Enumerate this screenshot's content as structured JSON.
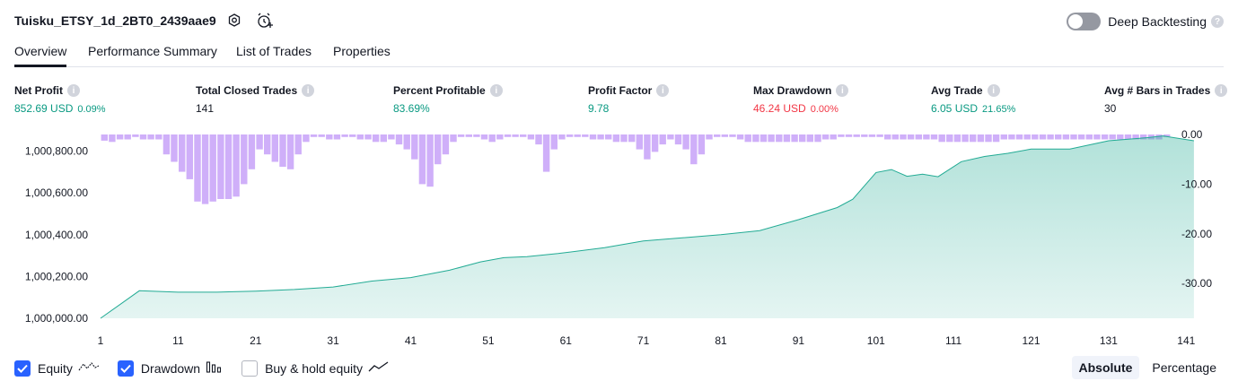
{
  "header": {
    "title": "Tuisku_ETSY_1d_2BT0_2439aae9",
    "deep_backtesting_label": "Deep Backtesting",
    "deep_backtesting_enabled": false
  },
  "tabs": [
    {
      "label": "Overview",
      "active": true
    },
    {
      "label": "Performance Summary",
      "active": false
    },
    {
      "label": "List of Trades",
      "active": false
    },
    {
      "label": "Properties",
      "active": false
    }
  ],
  "metrics": {
    "net_profit": {
      "label": "Net Profit",
      "value": "852.69 USD",
      "sub": "0.09%"
    },
    "total_closed_trades": {
      "label": "Total Closed Trades",
      "value": "141"
    },
    "percent_profitable": {
      "label": "Percent Profitable",
      "value": "83.69%"
    },
    "profit_factor": {
      "label": "Profit Factor",
      "value": "9.78"
    },
    "max_drawdown": {
      "label": "Max Drawdown",
      "value": "46.24 USD",
      "sub": "0.00%"
    },
    "avg_trade": {
      "label": "Avg Trade",
      "value": "6.05 USD",
      "sub": "21.65%"
    },
    "avg_bars": {
      "label": "Avg # Bars in Trades",
      "value": "30"
    }
  },
  "chart_data": {
    "type": "area",
    "x_ticks": [
      "1",
      "11",
      "21",
      "31",
      "41",
      "51",
      "61",
      "71",
      "81",
      "91",
      "101",
      "111",
      "121",
      "131",
      "141"
    ],
    "y_left_ticks": [
      "1,000,000.00",
      "1,000,200.00",
      "1,000,400.00",
      "1,000,600.00",
      "1,000,800.00"
    ],
    "y_left_range": [
      1000000,
      1000880
    ],
    "y_right_ticks": [
      "0.00",
      "-10.00",
      "-20.00",
      "-30.00"
    ],
    "y_right_range": [
      -37,
      0
    ],
    "equity_points": [
      [
        1,
        1000000
      ],
      [
        6,
        1000132
      ],
      [
        11,
        1000125
      ],
      [
        16,
        1000125
      ],
      [
        21,
        1000130
      ],
      [
        26,
        1000138
      ],
      [
        31,
        1000150
      ],
      [
        36,
        1000178
      ],
      [
        41,
        1000195
      ],
      [
        46,
        1000230
      ],
      [
        50,
        1000270
      ],
      [
        53,
        1000290
      ],
      [
        56,
        1000295
      ],
      [
        60,
        1000310
      ],
      [
        66,
        1000338
      ],
      [
        71,
        1000370
      ],
      [
        76,
        1000385
      ],
      [
        81,
        1000400
      ],
      [
        86,
        1000420
      ],
      [
        91,
        1000472
      ],
      [
        96,
        1000530
      ],
      [
        98,
        1000570
      ],
      [
        101,
        1000698
      ],
      [
        103,
        1000712
      ],
      [
        105,
        1000680
      ],
      [
        107,
        1000690
      ],
      [
        109,
        1000678
      ],
      [
        112,
        1000750
      ],
      [
        115,
        1000775
      ],
      [
        118,
        1000790
      ],
      [
        121,
        1000810
      ],
      [
        126,
        1000810
      ],
      [
        131,
        1000850
      ],
      [
        136,
        1000865
      ],
      [
        138,
        1000873
      ],
      [
        142,
        1000850
      ]
    ],
    "drawdown": [
      -1.25,
      -1.5,
      -1.0,
      -1.0,
      -0.5,
      -1.0,
      -1.0,
      -1.0,
      -4,
      -5.5,
      -7.5,
      -9,
      -13.5,
      -14,
      -13.5,
      -13,
      -13,
      -12.5,
      -10,
      -7,
      -3,
      -4,
      -5.5,
      -6.5,
      -7,
      -4,
      -1.5,
      -0.5,
      -0.5,
      -1,
      -1,
      -0.5,
      -0.5,
      -1,
      -1,
      -1.5,
      -1.5,
      -1,
      -2,
      -3,
      -5,
      -10,
      -10.5,
      -6,
      -4,
      -1.5,
      -0.5,
      -0.5,
      -0.5,
      -1,
      -1.5,
      -1,
      -0.5,
      -0.5,
      -0.5,
      -1,
      -2,
      -7.5,
      -3,
      -1,
      -0.5,
      -0.5,
      -0.5,
      -1,
      -1,
      -1,
      -1.5,
      -1.5,
      -1.5,
      -3,
      -5,
      -3.5,
      -2,
      -1,
      -2,
      -3,
      -6,
      -4,
      -1,
      -0.5,
      -0.5,
      -0.5,
      -1,
      -1.5,
      -1.5,
      -1.5,
      -1.5,
      -1.5,
      -1.5,
      -1.5,
      -1.5,
      -1.5,
      -1.5,
      -1,
      -1,
      -0.5,
      -0.5,
      -0.5,
      -0.5,
      -0.5,
      -0.5,
      -1,
      -1,
      -1,
      -1,
      -1,
      -1,
      -1,
      -1.5,
      -1.5,
      -1.5,
      -1.5,
      -1.5,
      -1.5,
      -1.5,
      -1.5,
      -1,
      -1,
      -1,
      -1,
      -1,
      -1,
      -1,
      -1,
      -1,
      -1,
      -1,
      -1,
      -1,
      -1,
      -1,
      -1,
      -1,
      -1,
      -1,
      -1,
      -1,
      -0.5
    ],
    "series": [
      {
        "name": "Equity",
        "color": "#22ab94"
      },
      {
        "name": "Drawdown",
        "color": "#c39bf8"
      }
    ]
  },
  "legend": [
    {
      "label": "Equity",
      "checked": true,
      "icon": "line-wave-icon"
    },
    {
      "label": "Drawdown",
      "checked": true,
      "icon": "bars-icon"
    },
    {
      "label": "Buy & hold equity",
      "checked": false,
      "icon": "trend-line-icon"
    }
  ],
  "mode": {
    "absolute": "Absolute",
    "percentage": "Percentage",
    "selected": "Absolute"
  },
  "colors": {
    "accent": "#2962ff",
    "positive": "#089981",
    "negative": "#f23645",
    "equity_line": "#22ab94",
    "drawdown_bar": "#c39bf8"
  }
}
